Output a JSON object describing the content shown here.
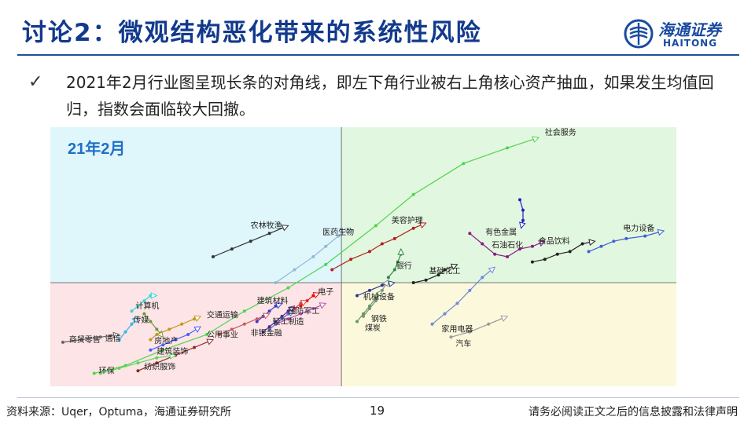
{
  "page": {
    "title": "讨论2：微观结构恶化带来的系统性风险",
    "bullet": "2021年2月行业图呈现长条的对角线，即左下角行业被右上角核心资产抽血，如果发生均值回归，指数会面临较大回撤。",
    "bullet_icon": "check-icon"
  },
  "logo": {
    "cn": "海通证券",
    "en": "HAITONG",
    "color": "#1a4aa0"
  },
  "footer": {
    "source": "资料来源：Uqer，Optuma，海通证券研究所",
    "page_number": "19",
    "disclaimer": "请务必阅读正文之后的信息披露和法律声明"
  },
  "chart_data": {
    "type": "scatter",
    "title": "21年2月",
    "xlim": [
      0,
      100
    ],
    "ylim": [
      0,
      100
    ],
    "x_divider": 46.5,
    "y_divider": 40,
    "grid": false,
    "quadrant_colors": {
      "top_left": "#dff6fb",
      "top_right": "#e2f7df",
      "bottom_left": "#fde4e6",
      "bottom_right": "#fcf8dc"
    },
    "series": [
      {
        "name": "社会服务",
        "color": "#4fd44f",
        "points": [
          [
            7,
            5
          ],
          [
            12,
            8
          ],
          [
            18,
            14
          ],
          [
            25,
            20
          ],
          [
            31,
            29
          ],
          [
            38,
            38
          ],
          [
            44,
            47
          ],
          [
            52,
            62
          ],
          [
            58,
            74
          ],
          [
            66,
            86
          ],
          [
            73,
            92
          ],
          [
            78,
            96
          ]
        ]
      },
      {
        "name": "农林牧渔",
        "color": "#333333",
        "points": [
          [
            26,
            50
          ],
          [
            29,
            53
          ],
          [
            32,
            56
          ],
          [
            35,
            59
          ],
          [
            38,
            62
          ]
        ]
      },
      {
        "name": "医药生物",
        "color": "#8fb8d8",
        "points": [
          [
            36,
            40
          ],
          [
            39,
            45
          ],
          [
            42,
            50
          ],
          [
            44,
            54
          ],
          [
            46,
            58
          ],
          [
            48,
            61
          ]
        ]
      },
      {
        "name": "美容护理",
        "color": "#b02020",
        "points": [
          [
            45,
            45
          ],
          [
            48,
            49
          ],
          [
            51,
            52
          ],
          [
            53,
            55
          ],
          [
            55,
            57
          ],
          [
            58,
            61
          ],
          [
            60,
            63
          ]
        ]
      },
      {
        "name": "有色金属",
        "color": "#2020c0",
        "points": [
          [
            75,
            72
          ],
          [
            75.5,
            68
          ],
          [
            75.5,
            64
          ],
          [
            75.2,
            61
          ]
        ]
      },
      {
        "name": "石油石化",
        "color": "#8a1a8a",
        "points": [
          [
            67,
            59
          ],
          [
            69,
            55
          ],
          [
            71,
            51
          ],
          [
            73,
            50
          ],
          [
            75,
            53
          ],
          [
            77,
            54
          ],
          [
            79,
            56
          ]
        ]
      },
      {
        "name": "食品饮料",
        "color": "#222222",
        "points": [
          [
            77,
            48
          ],
          [
            79,
            49
          ],
          [
            81,
            51
          ],
          [
            83,
            52
          ],
          [
            85,
            55
          ],
          [
            87,
            56
          ]
        ]
      },
      {
        "name": "电力设备",
        "color": "#4060d8",
        "points": [
          [
            86,
            52
          ],
          [
            88,
            54
          ],
          [
            90,
            56
          ],
          [
            92,
            57
          ],
          [
            95,
            58
          ],
          [
            98,
            60
          ]
        ]
      },
      {
        "name": "银行",
        "color": "#2e8a3e",
        "points": [
          [
            54,
            42
          ],
          [
            55,
            45
          ],
          [
            55.5,
            48
          ],
          [
            56,
            51
          ],
          [
            56,
            53
          ]
        ]
      },
      {
        "name": "基础化工",
        "color": "#222222",
        "points": [
          [
            58,
            40
          ],
          [
            60,
            41
          ],
          [
            62,
            43
          ],
          [
            63,
            45
          ],
          [
            65,
            47
          ]
        ]
      },
      {
        "name": "机械设备",
        "color": "#2a3a8a",
        "points": [
          [
            49,
            35
          ],
          [
            51,
            37
          ],
          [
            53,
            39
          ],
          [
            55,
            40
          ]
        ]
      },
      {
        "name": "钢铁",
        "color": "#8a8a8a",
        "points": [
          [
            50,
            27
          ],
          [
            51,
            30
          ],
          [
            52,
            33
          ],
          [
            53,
            37
          ],
          [
            54,
            41
          ]
        ]
      },
      {
        "name": "煤炭",
        "color": "#5aa05a",
        "points": [
          [
            49,
            25
          ],
          [
            50,
            28
          ],
          [
            51,
            31
          ],
          [
            52,
            34
          ],
          [
            53,
            37
          ]
        ]
      },
      {
        "name": "家用电器",
        "color": "#6a8ad8",
        "points": [
          [
            61,
            24
          ],
          [
            63,
            28
          ],
          [
            65,
            32
          ],
          [
            67,
            37
          ],
          [
            69,
            42
          ],
          [
            71,
            46
          ]
        ]
      },
      {
        "name": "汽车",
        "color": "#9a9a9a",
        "points": [
          [
            64,
            19
          ],
          [
            67,
            21
          ],
          [
            70,
            24
          ],
          [
            73,
            27
          ]
        ]
      },
      {
        "name": "电子",
        "color": "#e01010",
        "points": [
          [
            40,
            31
          ],
          [
            41,
            33
          ],
          [
            42,
            35
          ],
          [
            43,
            36
          ]
        ]
      },
      {
        "name": "建筑材料",
        "color": "#e04040",
        "points": [
          [
            37,
            26
          ],
          [
            38,
            28
          ],
          [
            39,
            30
          ],
          [
            40,
            32
          ],
          [
            41,
            33
          ]
        ]
      },
      {
        "name": "国防军工",
        "color": "#b050b0",
        "points": [
          [
            36,
            24
          ],
          [
            38,
            26
          ],
          [
            40,
            28
          ],
          [
            42,
            30
          ],
          [
            44,
            32
          ]
        ]
      },
      {
        "name": "轻工制造",
        "color": "#4a7ac8",
        "points": [
          [
            35,
            22
          ],
          [
            36,
            24
          ],
          [
            37,
            26
          ],
          [
            38,
            28
          ],
          [
            39,
            29
          ]
        ]
      },
      {
        "name": "交通运输",
        "color": "#3a3acc",
        "points": [
          [
            33,
            25
          ],
          [
            34,
            27
          ],
          [
            35,
            29
          ],
          [
            36,
            31
          ],
          [
            37,
            32
          ]
        ]
      },
      {
        "name": "非银金融",
        "color": "#5a2a8a",
        "points": [
          [
            34,
            21
          ],
          [
            35,
            23
          ],
          [
            36,
            25
          ],
          [
            37,
            27
          ],
          [
            38,
            29
          ],
          [
            39,
            31
          ]
        ]
      },
      {
        "name": "公用事业",
        "color": "#c85a5a",
        "points": [
          [
            27,
            20
          ],
          [
            29,
            22
          ],
          [
            31,
            24
          ],
          [
            33,
            26
          ],
          [
            35,
            28
          ]
        ]
      },
      {
        "name": "计算机",
        "color": "#30d8d8",
        "points": [
          [
            13,
            29
          ],
          [
            14,
            31
          ],
          [
            15,
            33
          ],
          [
            16,
            35
          ],
          [
            17,
            35
          ]
        ]
      },
      {
        "name": "传媒",
        "color": "#6a9a3a",
        "points": [
          [
            15,
            28
          ],
          [
            16,
            25
          ],
          [
            17,
            22
          ],
          [
            18,
            19
          ]
        ]
      },
      {
        "name": "商贸零售",
        "color": "#666666",
        "points": [
          [
            2,
            17
          ],
          [
            5,
            18
          ],
          [
            8,
            19
          ],
          [
            11,
            20
          ]
        ]
      },
      {
        "name": "通信",
        "color": "#30b8e8",
        "points": [
          [
            11,
            18
          ],
          [
            12,
            21
          ],
          [
            13,
            24
          ],
          [
            14,
            27
          ]
        ]
      },
      {
        "name": "房地产",
        "color": "#c09a20",
        "points": [
          [
            16,
            18
          ],
          [
            17,
            20
          ],
          [
            19,
            22
          ],
          [
            21,
            24
          ],
          [
            23,
            26
          ],
          [
            24,
            27
          ]
        ]
      },
      {
        "name": "建筑装饰",
        "color": "#4060ff",
        "points": [
          [
            16,
            14
          ],
          [
            18,
            16
          ],
          [
            20,
            18
          ],
          [
            22,
            20
          ],
          [
            24,
            23
          ]
        ]
      },
      {
        "name": "纺织服饰",
        "color": "#8a2a2a",
        "points": [
          [
            14,
            6
          ],
          [
            17,
            9
          ],
          [
            20,
            12
          ],
          [
            23,
            15
          ],
          [
            26,
            18
          ]
        ]
      },
      {
        "name": "环保",
        "color": "#5ad85a",
        "points": [
          [
            8,
            5
          ],
          [
            11,
            7
          ],
          [
            14,
            9
          ],
          [
            17,
            11
          ],
          [
            20,
            12
          ]
        ]
      }
    ],
    "labels": [
      {
        "text": "社会服务",
        "x": 81.5,
        "y": 97
      },
      {
        "text": "农林牧渔",
        "x": 34.5,
        "y": 61
      },
      {
        "text": "医药生物",
        "x": 46,
        "y": 58.5
      },
      {
        "text": "美容护理",
        "x": 57,
        "y": 63
      },
      {
        "text": "有色金属",
        "x": 72,
        "y": 58.5
      },
      {
        "text": "食品饮料",
        "x": 80.5,
        "y": 55
      },
      {
        "text": "电力设备",
        "x": 94,
        "y": 60
      },
      {
        "text": "石油石化",
        "x": 73,
        "y": 53.5
      },
      {
        "text": "银行",
        "x": 56.5,
        "y": 45.5
      },
      {
        "text": "基础化工",
        "x": 63,
        "y": 43.5
      },
      {
        "text": "电子",
        "x": 44,
        "y": 35.5
      },
      {
        "text": "建筑材料",
        "x": 35.5,
        "y": 32
      },
      {
        "text": "机械设备",
        "x": 52.5,
        "y": 33.5
      },
      {
        "text": "国防军工",
        "x": 40.5,
        "y": 28
      },
      {
        "text": "交通运输",
        "x": 27.5,
        "y": 26.5
      },
      {
        "text": "轻工制造",
        "x": 38,
        "y": 24
      },
      {
        "text": "计算机",
        "x": 15.5,
        "y": 30
      },
      {
        "text": "钢铁",
        "x": 52.5,
        "y": 25
      },
      {
        "text": "传媒",
        "x": 14.5,
        "y": 24.5
      },
      {
        "text": "煤炭",
        "x": 51.5,
        "y": 21.5
      },
      {
        "text": "家用电器",
        "x": 65,
        "y": 21
      },
      {
        "text": "公用事业",
        "x": 27.5,
        "y": 19
      },
      {
        "text": "非银金融",
        "x": 34.5,
        "y": 19.5
      },
      {
        "text": "商贸零售",
        "x": 5.5,
        "y": 17
      },
      {
        "text": "通信",
        "x": 10,
        "y": 17.5
      },
      {
        "text": "房地产",
        "x": 18.5,
        "y": 16.5
      },
      {
        "text": "汽车",
        "x": 66,
        "y": 15.5
      },
      {
        "text": "建筑装饰",
        "x": 19.5,
        "y": 12.5
      },
      {
        "text": "纺织服饰",
        "x": 17.5,
        "y": 6.5
      },
      {
        "text": "环保",
        "x": 9,
        "y": 5
      }
    ]
  }
}
